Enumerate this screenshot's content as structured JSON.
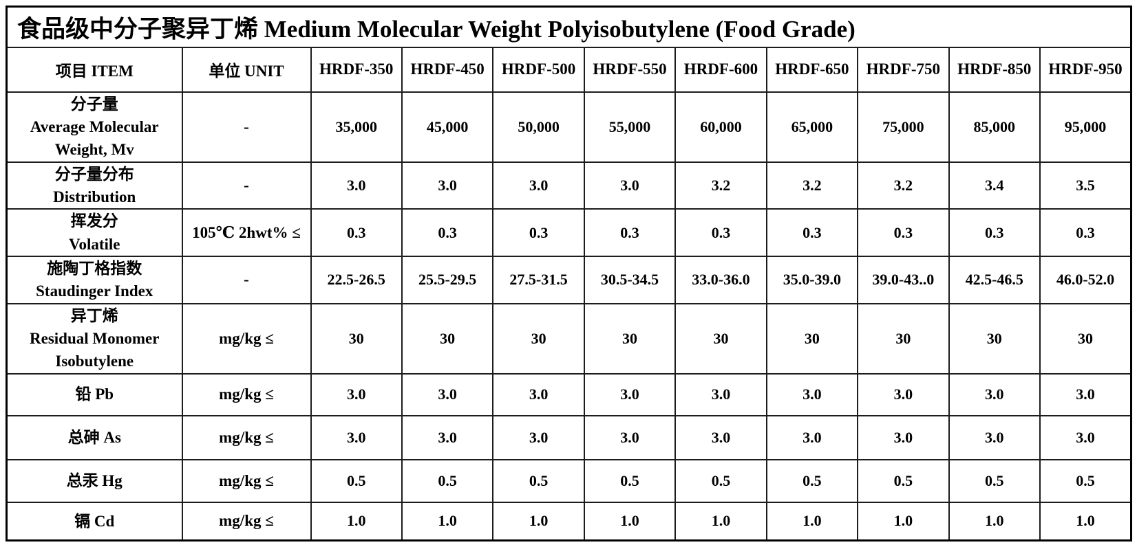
{
  "page": {
    "title": "食品级中分子聚异丁烯 Medium Molecular Weight Polyisobutylene (Food Grade)"
  },
  "colors": {
    "text": "#000000",
    "border": "#1c1c1c",
    "background": "#ffffff"
  },
  "table": {
    "header": {
      "item": "项目 ITEM",
      "unit": "单位 UNIT",
      "grades": [
        "HRDF-350",
        "HRDF-450",
        "HRDF-500",
        "HRDF-550",
        "HRDF-600",
        "HRDF-650",
        "HRDF-750",
        "HRDF-850",
        "HRDF-950"
      ]
    },
    "rows": [
      {
        "item_lines": [
          "分子量",
          "Average Molecular",
          "Weight, Mv"
        ],
        "unit": "-",
        "values": [
          "35,000",
          "45,000",
          "50,000",
          "55,000",
          "60,000",
          "65,000",
          "75,000",
          "85,000",
          "95,000"
        ]
      },
      {
        "item_lines": [
          "分子量分布",
          "Distribution"
        ],
        "unit": "-",
        "values": [
          "3.0",
          "3.0",
          "3.0",
          "3.0",
          "3.2",
          "3.2",
          "3.2",
          "3.4",
          "3.5"
        ]
      },
      {
        "item_lines": [
          "挥发分",
          "Volatile"
        ],
        "unit": "105℃ 2hwt% ≤",
        "values": [
          "0.3",
          "0.3",
          "0.3",
          "0.3",
          "0.3",
          "0.3",
          "0.3",
          "0.3",
          "0.3"
        ]
      },
      {
        "item_lines": [
          "施陶丁格指数",
          "Staudinger Index"
        ],
        "unit": "-",
        "values": [
          "22.5-26.5",
          "25.5-29.5",
          "27.5-31.5",
          "30.5-34.5",
          "33.0-36.0",
          "35.0-39.0",
          "39.0-43..0",
          "42.5-46.5",
          "46.0-52.0"
        ]
      },
      {
        "item_lines": [
          "异丁烯",
          "Residual Monomer",
          "Isobutylene"
        ],
        "unit": "mg/kg ≤",
        "values": [
          "30",
          "30",
          "30",
          "30",
          "30",
          "30",
          "30",
          "30",
          "30"
        ]
      },
      {
        "item_lines": [
          "铅 Pb"
        ],
        "unit": "mg/kg ≤",
        "values": [
          "3.0",
          "3.0",
          "3.0",
          "3.0",
          "3.0",
          "3.0",
          "3.0",
          "3.0",
          "3.0"
        ]
      },
      {
        "item_lines": [
          "总砷 As"
        ],
        "unit": "mg/kg ≤",
        "values": [
          "3.0",
          "3.0",
          "3.0",
          "3.0",
          "3.0",
          "3.0",
          "3.0",
          "3.0",
          "3.0"
        ]
      },
      {
        "item_lines": [
          "总汞 Hg"
        ],
        "unit": "mg/kg ≤",
        "values": [
          "0.5",
          "0.5",
          "0.5",
          "0.5",
          "0.5",
          "0.5",
          "0.5",
          "0.5",
          "0.5"
        ]
      },
      {
        "item_lines": [
          "镉 Cd"
        ],
        "unit": "mg/kg ≤",
        "values": [
          "1.0",
          "1.0",
          "1.0",
          "1.0",
          "1.0",
          "1.0",
          "1.0",
          "1.0",
          "1.0"
        ]
      }
    ]
  }
}
